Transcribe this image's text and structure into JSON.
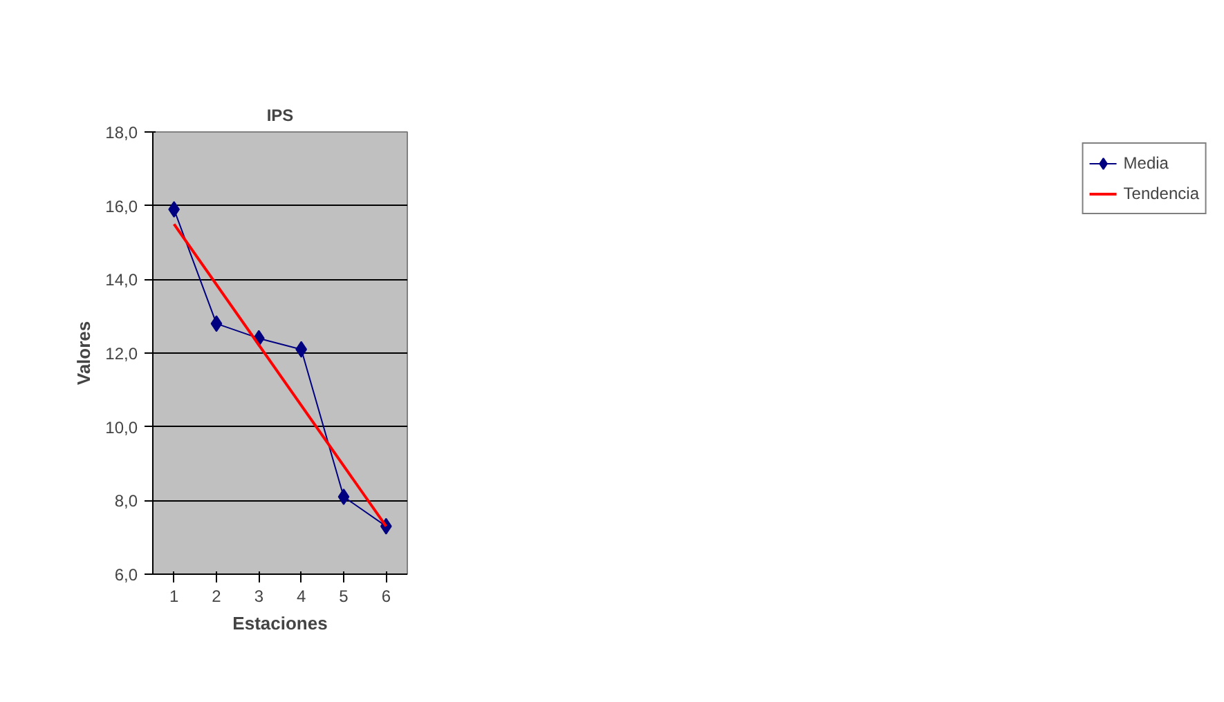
{
  "chart_data": {
    "type": "line",
    "title": "IPS",
    "xlabel": "Estaciones",
    "ylabel": "Valores",
    "categories": [
      "1",
      "2",
      "3",
      "4",
      "5",
      "6"
    ],
    "series": [
      {
        "name": "Media",
        "color": "#000080",
        "values": [
          15.9,
          12.8,
          12.4,
          12.1,
          8.1,
          7.3
        ],
        "marker": "diamond"
      },
      {
        "name": "Tendencia",
        "color": "#ff0000",
        "x": [
          "1",
          "6"
        ],
        "values": [
          15.5,
          7.3
        ],
        "marker": "none"
      }
    ],
    "ylim": [
      6,
      18
    ],
    "yticks": [
      {
        "value": 6,
        "label": "6,0"
      },
      {
        "value": 8,
        "label": "8,0"
      },
      {
        "value": 10,
        "label": "10,0"
      },
      {
        "value": 12,
        "label": "12,0"
      },
      {
        "value": 14,
        "label": "14,0"
      },
      {
        "value": 16,
        "label": "16,0"
      },
      {
        "value": 18,
        "label": "18,0"
      }
    ],
    "grid": "y",
    "legend": "right"
  }
}
